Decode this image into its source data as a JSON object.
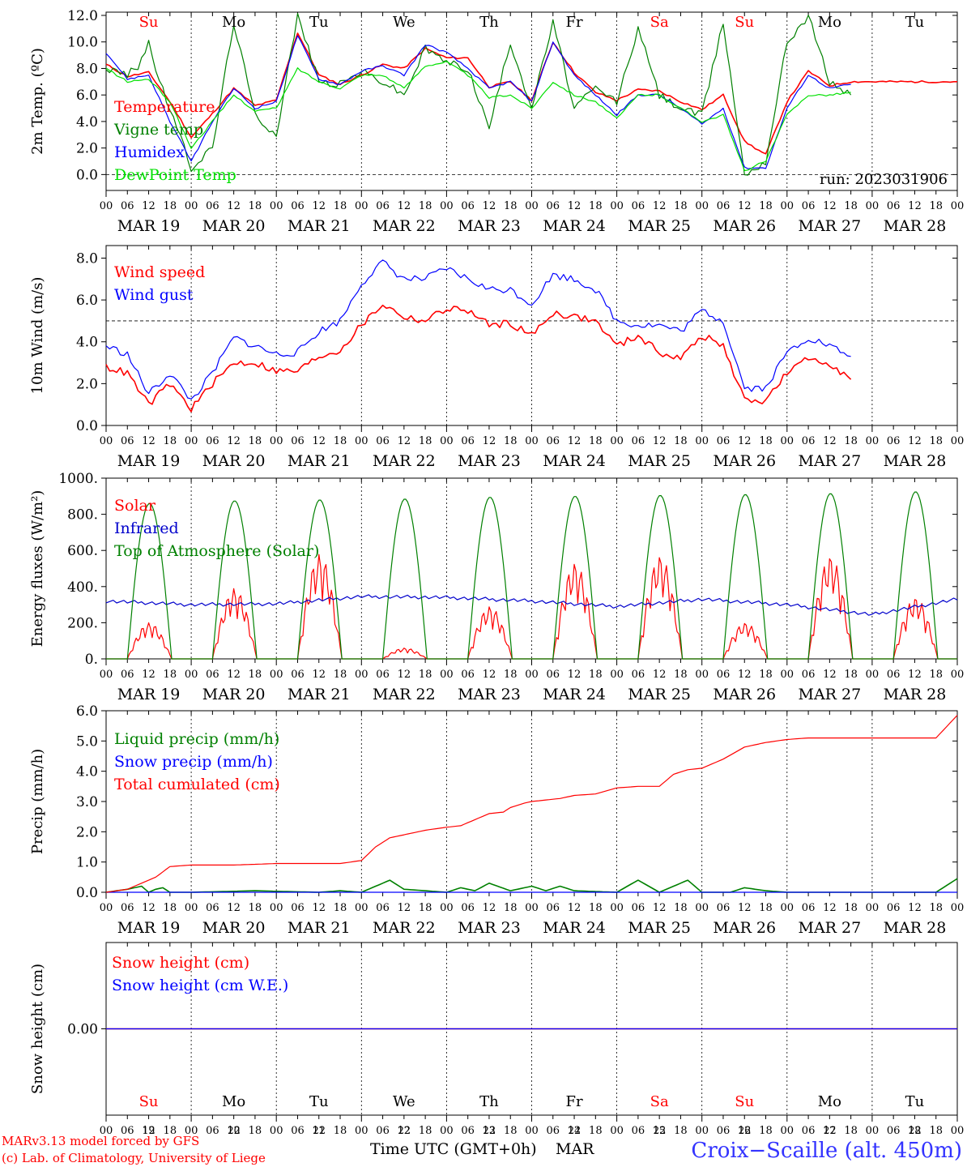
{
  "chart_data": [
    {
      "type": "line",
      "ylabel": "2m Temp. (ºC)",
      "yticks": [
        "12.0",
        "10.0",
        "8.0",
        "6.0",
        "4.0",
        "2.0",
        "0.0"
      ],
      "ylim": [
        -1.2,
        12.0
      ],
      "reference_line": 0,
      "run_label": "run: 2023031906",
      "series": [
        {
          "name": "Temperature",
          "color": "#ff0000",
          "x": [
            0,
            6,
            12,
            18,
            24,
            30,
            36,
            42,
            48,
            54,
            60,
            66,
            72,
            78,
            84,
            90,
            96,
            102,
            108,
            114,
            120,
            126,
            132,
            138,
            144,
            150,
            156,
            162,
            168,
            174,
            180,
            186,
            192,
            198,
            204,
            210,
            216,
            222,
            228,
            234,
            240
          ],
          "y": [
            8.3,
            7.4,
            7.7,
            5.5,
            2.8,
            4.6,
            6.5,
            5.2,
            5.6,
            10.7,
            7.5,
            6.8,
            7.5,
            8.3,
            8.0,
            9.5,
            8.8,
            8.8,
            6.6,
            7.0,
            5.6,
            10.0,
            7.7,
            6.2,
            5.6,
            6.4,
            6.3,
            5.5,
            4.9,
            6.0,
            2.5,
            1.5,
            5.5,
            7.8,
            6.7,
            7.0,
            7.0,
            7.0,
            7.0,
            7.0,
            7.0
          ]
        },
        {
          "name": "Vigne temp",
          "color": "#008000",
          "x": [
            0,
            6,
            9,
            12,
            15,
            18,
            24,
            30,
            36,
            42,
            48,
            54,
            60,
            66,
            72,
            78,
            84,
            90,
            96,
            102,
            108,
            114,
            120,
            126,
            132,
            138,
            144,
            150,
            156,
            162,
            168,
            174,
            180,
            186,
            192,
            198,
            204,
            210
          ],
          "y": [
            8.0,
            7.5,
            8.2,
            10.0,
            7.0,
            5.0,
            0.5,
            2.0,
            11.5,
            4.5,
            3.0,
            12.0,
            7.0,
            6.8,
            7.8,
            7.0,
            6.0,
            9.5,
            8.5,
            8.0,
            3.5,
            10.0,
            5.0,
            11.5,
            5.0,
            6.5,
            5.5,
            11.0,
            6.0,
            5.0,
            4.5,
            11.5,
            0.0,
            1.0,
            10.0,
            12.0,
            7.0,
            6.0
          ]
        },
        {
          "name": "Humidex",
          "color": "#0000ff",
          "x": [
            0,
            6,
            12,
            18,
            24,
            30,
            36,
            42,
            48,
            54,
            60,
            66,
            72,
            78,
            84,
            90,
            96,
            102,
            108,
            114,
            120,
            126,
            132,
            138,
            144,
            150,
            156,
            162,
            168,
            174,
            180,
            186,
            192,
            198,
            204,
            210
          ],
          "y": [
            9.2,
            7.2,
            7.5,
            4.0,
            1.0,
            4.0,
            6.5,
            5.0,
            5.5,
            10.5,
            7.2,
            6.8,
            7.8,
            8.2,
            7.5,
            9.8,
            9.2,
            8.0,
            6.5,
            7.0,
            5.5,
            10.0,
            7.5,
            6.0,
            4.5,
            6.0,
            6.0,
            5.0,
            3.8,
            5.0,
            0.5,
            0.5,
            5.0,
            7.5,
            6.5,
            6.8
          ]
        },
        {
          "name": "DewPoint Temp",
          "color": "#00e000",
          "x": [
            0,
            6,
            12,
            18,
            24,
            30,
            36,
            42,
            48,
            54,
            60,
            66,
            72,
            78,
            84,
            90,
            96,
            102,
            108,
            114,
            120,
            126,
            132,
            138,
            144,
            150,
            156,
            162,
            168,
            174,
            180,
            186,
            192,
            198,
            204,
            210
          ],
          "y": [
            8.0,
            7.0,
            7.2,
            5.5,
            2.0,
            4.0,
            6.0,
            4.8,
            5.0,
            8.0,
            7.0,
            6.5,
            7.5,
            7.5,
            6.5,
            8.2,
            8.5,
            7.5,
            5.8,
            6.0,
            5.0,
            7.0,
            6.0,
            5.5,
            4.2,
            6.0,
            6.0,
            5.0,
            4.0,
            4.5,
            0.3,
            1.0,
            4.5,
            6.0,
            6.0,
            6.2
          ]
        }
      ]
    },
    {
      "type": "line",
      "ylabel": "10m Wind (m/s)",
      "yticks": [
        "8.0",
        "6.0",
        "4.0",
        "2.0",
        "0.0"
      ],
      "ylim": [
        0,
        8.6
      ],
      "reference_line": 5,
      "series": [
        {
          "name": "Wind speed",
          "color": "#ff0000",
          "x": [
            0,
            6,
            12,
            18,
            24,
            30,
            36,
            42,
            48,
            54,
            60,
            66,
            72,
            78,
            84,
            90,
            96,
            102,
            108,
            114,
            120,
            126,
            132,
            138,
            144,
            150,
            156,
            162,
            168,
            174,
            180,
            186,
            192,
            198,
            204,
            210
          ],
          "y": [
            2.8,
            2.5,
            1.0,
            2.0,
            0.8,
            2.0,
            3.0,
            3.0,
            2.6,
            2.6,
            3.3,
            3.6,
            4.8,
            5.8,
            5.2,
            5.0,
            5.6,
            5.5,
            4.8,
            4.9,
            4.3,
            5.4,
            5.2,
            5.0,
            3.8,
            4.3,
            3.5,
            3.2,
            4.3,
            3.8,
            1.2,
            1.2,
            2.5,
            3.2,
            3.0,
            2.2
          ]
        },
        {
          "name": "Wind gust",
          "color": "#0000ff",
          "x": [
            0,
            6,
            12,
            18,
            24,
            30,
            36,
            42,
            48,
            54,
            60,
            66,
            72,
            78,
            84,
            90,
            96,
            102,
            108,
            114,
            120,
            126,
            132,
            138,
            144,
            150,
            156,
            162,
            168,
            174,
            180,
            186,
            192,
            198,
            204,
            210
          ],
          "y": [
            3.8,
            3.4,
            1.5,
            2.5,
            1.2,
            2.5,
            4.2,
            3.8,
            3.4,
            3.5,
            4.5,
            5.0,
            6.8,
            7.8,
            7.0,
            7.0,
            7.5,
            7.0,
            6.5,
            6.5,
            5.8,
            7.2,
            7.0,
            6.5,
            5.0,
            4.8,
            4.8,
            4.5,
            5.5,
            5.0,
            1.8,
            1.8,
            3.5,
            4.2,
            3.8,
            3.3
          ]
        }
      ]
    },
    {
      "type": "line",
      "ylabel": "Energy fluxes (W/m²)",
      "yticks": [
        "1000.",
        "800.",
        "600.",
        "400.",
        "200.",
        "0."
      ],
      "ylim": [
        0,
        1000
      ],
      "series": [
        {
          "name": "Solar",
          "color": "#ff0000",
          "daily_peak": [
            200,
            390,
            580,
            60,
            290,
            530,
            570,
            200,
            570,
            340
          ]
        },
        {
          "name": "Infrared",
          "color": "#0000cc",
          "daily_level": [
            320,
            300,
            305,
            345,
            340,
            320,
            290,
            330,
            300,
            245,
            330
          ]
        },
        {
          "name": "Top of Atmosphere (Solar)",
          "color": "#008000",
          "daily_peak": [
            860,
            875,
            880,
            885,
            895,
            900,
            905,
            910,
            915,
            925
          ]
        }
      ]
    },
    {
      "type": "line",
      "ylabel": "Precip (mm/h)",
      "yticks": [
        "6.0",
        "5.0",
        "4.0",
        "3.0",
        "2.0",
        "1.0",
        "0.0"
      ],
      "ylim": [
        0,
        6
      ],
      "series": [
        {
          "name": "Liquid precip (mm/h)",
          "color": "#008000",
          "x": [
            0,
            6,
            8,
            10,
            12,
            14,
            16,
            18,
            24,
            42,
            60,
            66,
            72,
            76,
            80,
            84,
            96,
            100,
            104,
            108,
            114,
            120,
            124,
            128,
            132,
            144,
            150,
            156,
            160,
            164,
            168,
            172,
            176,
            180,
            186,
            192,
            198,
            204,
            210,
            216,
            222,
            228,
            234,
            240
          ],
          "y": [
            0,
            0.1,
            0.15,
            0.2,
            0,
            0.1,
            0.15,
            0,
            0,
            0.05,
            0,
            0.05,
            0,
            0.2,
            0.4,
            0.1,
            0,
            0.15,
            0.05,
            0.3,
            0.05,
            0.2,
            0.05,
            0.2,
            0.05,
            0,
            0.4,
            0,
            0.2,
            0.4,
            0,
            0,
            0,
            0.15,
            0.05,
            0,
            0,
            0,
            0,
            0,
            0,
            0,
            0,
            0.45
          ]
        },
        {
          "name": "Snow precip (mm/h)",
          "color": "#0000ff",
          "x": [
            0,
            240
          ],
          "y": [
            0,
            0
          ]
        },
        {
          "name": "Total cumulated (cm)",
          "color": "#ff0000",
          "x": [
            0,
            6,
            10,
            14,
            18,
            24,
            36,
            48,
            60,
            66,
            72,
            76,
            80,
            84,
            90,
            96,
            100,
            104,
            108,
            112,
            114,
            118,
            120,
            124,
            128,
            132,
            138,
            144,
            150,
            154,
            156,
            160,
            164,
            168,
            174,
            180,
            186,
            192,
            198,
            204,
            210,
            216,
            222,
            228,
            234,
            240
          ],
          "y": [
            0,
            0.1,
            0.3,
            0.5,
            0.85,
            0.9,
            0.9,
            0.95,
            0.95,
            0.95,
            1.05,
            1.5,
            1.8,
            1.9,
            2.05,
            2.15,
            2.2,
            2.4,
            2.6,
            2.65,
            2.8,
            2.95,
            3.0,
            3.05,
            3.1,
            3.2,
            3.25,
            3.45,
            3.5,
            3.5,
            3.5,
            3.9,
            4.05,
            4.1,
            4.4,
            4.8,
            4.95,
            5.05,
            5.1,
            5.1,
            5.1,
            5.1,
            5.1,
            5.1,
            5.1,
            5.85
          ]
        }
      ]
    },
    {
      "type": "line",
      "ylabel": "Snow height (cm)",
      "yticks": [
        "0.00"
      ],
      "ylim": [
        -1,
        1
      ],
      "series": [
        {
          "name": "Snow height (cm)",
          "color": "#ff0000",
          "x": [
            0,
            240
          ],
          "y": [
            0,
            0
          ]
        },
        {
          "name": "Snow height (cm W.E.)",
          "color": "#0000ff",
          "x": [
            0,
            240
          ],
          "y": [
            0,
            0
          ]
        }
      ]
    }
  ],
  "x_axis": {
    "hour_ticks": [
      "00",
      "06",
      "12",
      "18"
    ],
    "end_tick": "00",
    "dates": [
      "MAR 19",
      "MAR 20",
      "MAR 21",
      "MAR 22",
      "MAR 23",
      "MAR 24",
      "MAR 25",
      "MAR 26",
      "MAR 27",
      "MAR 28"
    ]
  },
  "weekdays": [
    {
      "label": "Su",
      "color": "#ff0000"
    },
    {
      "label": "Mo",
      "color": "#000000"
    },
    {
      "label": "Tu",
      "color": "#000000"
    },
    {
      "label": "We",
      "color": "#000000"
    },
    {
      "label": "Th",
      "color": "#000000"
    },
    {
      "label": "Fr",
      "color": "#000000"
    },
    {
      "label": "Sa",
      "color": "#ff0000"
    },
    {
      "label": "Su",
      "color": "#ff0000"
    },
    {
      "label": "Mo",
      "color": "#000000"
    },
    {
      "label": "Tu",
      "color": "#000000"
    }
  ],
  "bottom_day_numbers": [
    "19",
    "20",
    "21",
    "22",
    "23",
    "24",
    "25",
    "26",
    "27",
    "28"
  ],
  "footer": {
    "model_line": "MARv3.13 model forced by GFS",
    "credit_line": "(c) Lab. of Climatology, University of Liege",
    "axis_title": "Time UTC (GMT+0h)",
    "month": "MAR",
    "station": "Croix−Scaille (alt. 450m)"
  }
}
